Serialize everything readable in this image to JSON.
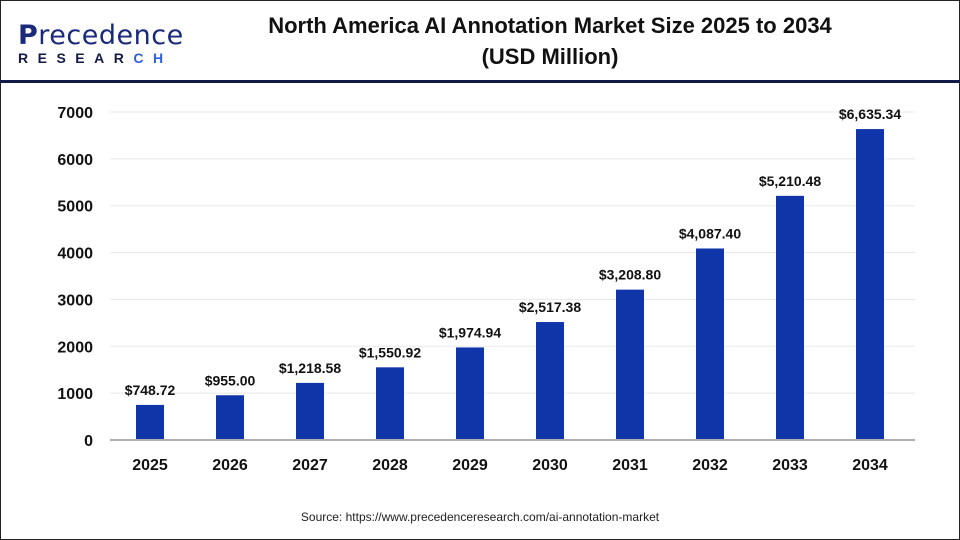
{
  "logo": {
    "brand": "Precedence",
    "sub": "RESEARCH"
  },
  "title_line1": "North America AI Annotation Market Size 2025 to 2034",
  "title_line2": "(USD Million)",
  "source": "Source: https://www.precedenceresearch.com/ai-annotation-market",
  "colors": {
    "bar": "#0f35a8",
    "axis": "#b0b0b0",
    "grid": "#e8e8e8"
  },
  "chart_data": {
    "type": "bar",
    "title": "North America AI Annotation Market Size 2025 to 2034 (USD Million)",
    "categories": [
      "2025",
      "2026",
      "2027",
      "2028",
      "2029",
      "2030",
      "2031",
      "2032",
      "2033",
      "2034"
    ],
    "values": [
      748.72,
      955.0,
      1218.58,
      1550.92,
      1974.94,
      2517.38,
      3208.8,
      4087.4,
      5210.48,
      6635.34
    ],
    "data_labels": [
      "$748.72",
      "$955.00",
      "$1,218.58",
      "$1,550.92",
      "$1,974.94",
      "$2,517.38",
      "$3,208.80",
      "$4,087.40",
      "$5,210.48",
      "$6,635.34"
    ],
    "yticks": [
      0,
      1000,
      2000,
      3000,
      4000,
      5000,
      6000,
      7000
    ],
    "ylim": [
      0,
      7000
    ],
    "grid": true,
    "xlabel": "",
    "ylabel": ""
  }
}
